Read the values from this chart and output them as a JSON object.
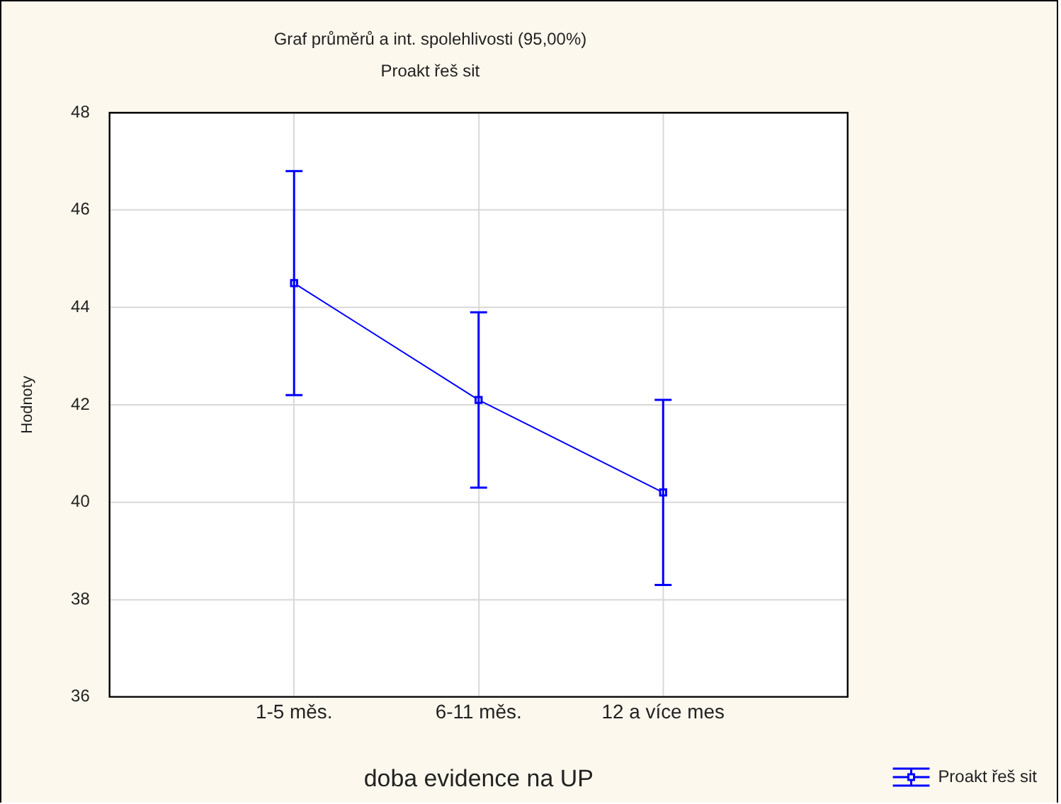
{
  "chart_data": {
    "type": "line",
    "title": "Graf průměrů a int. spolehlivosti (95,00%)",
    "subtitle": "Proakt řeš sit",
    "xlabel": "doba evidence na UP",
    "ylabel": "Hodnoty",
    "categories": [
      "1-5 měs.",
      "6-11 měs.",
      "12 a více mes"
    ],
    "series": [
      {
        "name": "Proakt řeš sit",
        "color": "#0000ff",
        "values": [
          44.5,
          42.1,
          40.2
        ],
        "errors": [
          [
            42.2,
            46.8
          ],
          [
            40.3,
            43.9
          ],
          [
            38.3,
            42.1
          ]
        ]
      }
    ],
    "ylim": [
      36,
      48
    ],
    "yticks": [
      36,
      38,
      40,
      42,
      44,
      46,
      48
    ],
    "grid": true,
    "legend": "bottom right",
    "marker": "square",
    "line_style": "solid"
  }
}
